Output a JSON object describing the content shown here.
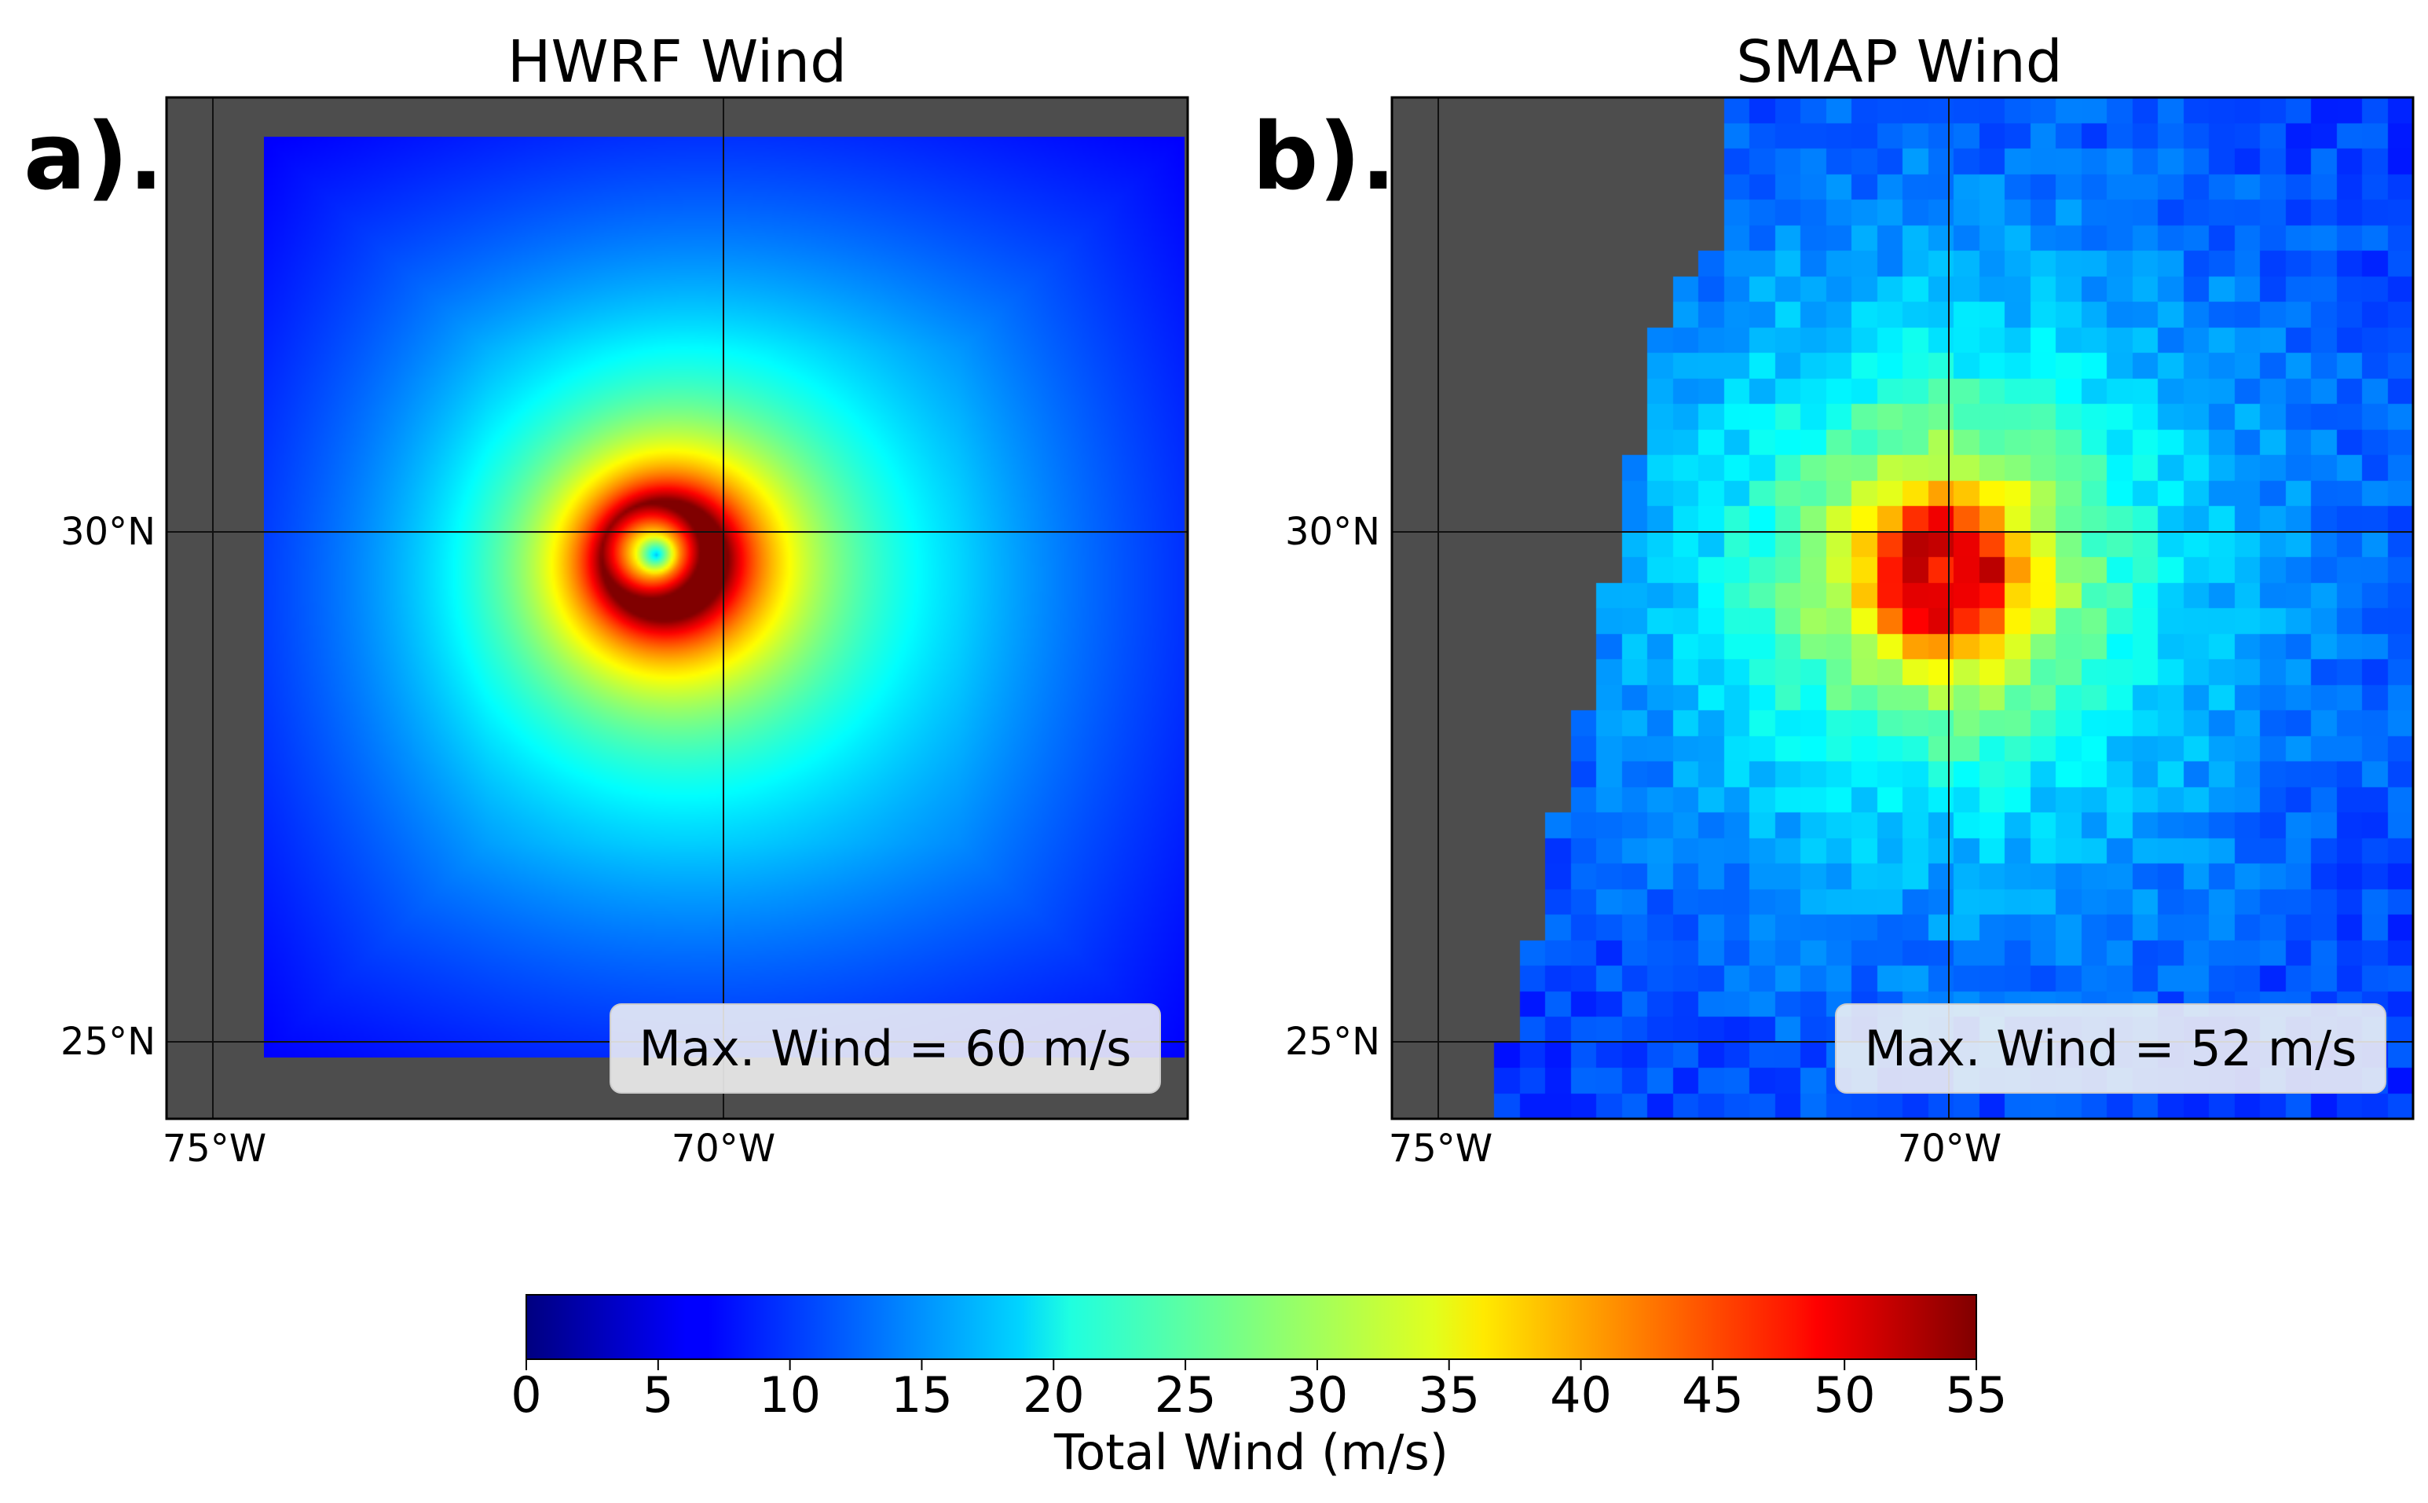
{
  "chart_data": [
    {
      "type": "heatmap",
      "panel_label": "a).",
      "title": "HWRF Wind",
      "annotation": "Max. Wind = 60 m/s",
      "max_wind": 60,
      "lon_ticks": [
        "75°W",
        "70°W"
      ],
      "lat_ticks": [
        "30°N",
        "25°N"
      ],
      "lon_range": [
        -75.5,
        -65.4
      ],
      "lat_range": [
        24.25,
        34.25
      ],
      "center": {
        "lon": -70.65,
        "lat": 29.55
      },
      "eye_radius_deg": 0.22,
      "rmw_deg": 0.55,
      "background_wind": 10,
      "missing_color": "#4d4d4d"
    },
    {
      "type": "heatmap",
      "panel_label": "b).",
      "title": "SMAP Wind",
      "annotation": "Max. Wind = 52 m/s",
      "max_wind": 52,
      "lon_ticks": [
        "75°W",
        "70°W"
      ],
      "lat_ticks": [
        "30°N",
        "25°N"
      ],
      "lon_range": [
        -75.5,
        -65.4
      ],
      "lat_range": [
        24.25,
        34.25
      ],
      "center": {
        "lon": -70.05,
        "lat": 29.6
      },
      "swath_west_edge": [
        [
          -72.2,
          34.25
        ],
        [
          -72.3,
          32.9
        ],
        [
          -72.8,
          32.1
        ],
        [
          -73.2,
          30.3
        ],
        [
          -73.6,
          28.2
        ],
        [
          -73.9,
          27.0
        ],
        [
          -74.2,
          25.7
        ],
        [
          -74.5,
          24.25
        ]
      ],
      "background_wind": 9,
      "missing_color": "#4d4d4d"
    }
  ],
  "colorbar": {
    "label": "Total Wind (m/s)",
    "min": 0,
    "max": 55,
    "ticks": [
      "0",
      "5",
      "10",
      "15",
      "20",
      "25",
      "30",
      "35",
      "40",
      "45",
      "50",
      "55"
    ],
    "colormap": "jet"
  }
}
